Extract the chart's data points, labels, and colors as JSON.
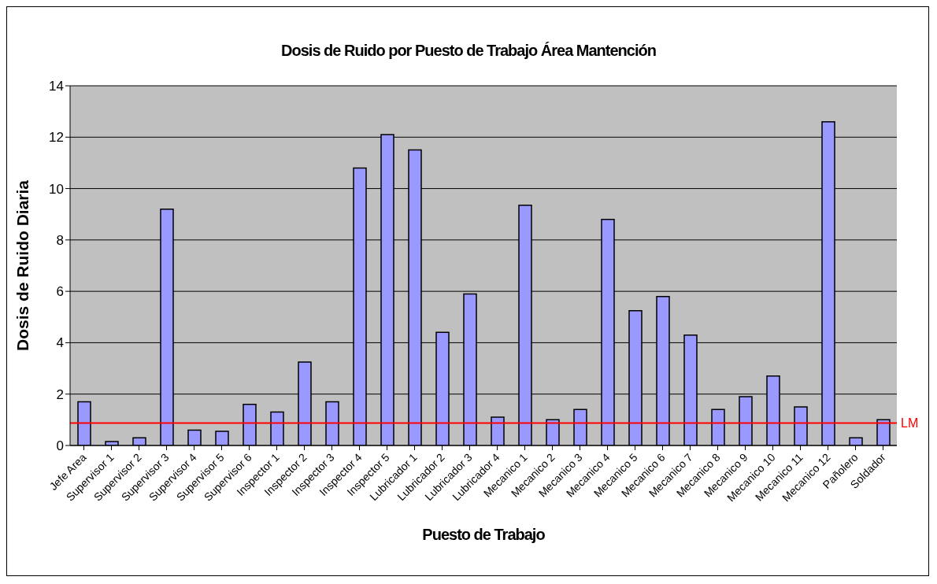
{
  "chart_data": {
    "type": "bar",
    "title": "Dosis de Ruido por Puesto de Trabajo Área Mantención",
    "xlabel": "Puesto de Trabajo",
    "ylabel": "Dosis de Ruido Diaria",
    "categories": [
      "Jefe Area",
      "Supervisor 1",
      "Supervisor 2",
      "Supervisor 3",
      "Supervisor 4",
      "Supervisor 5",
      "Supervisor 6",
      "Inspector 1",
      "Inspector 2",
      "Inspector 3",
      "Inspector 4",
      "Inspector 5",
      "Lubricador 1",
      "Lubricador 2",
      "Lubricador 3",
      "Lubricador 4",
      "Mecanico 1",
      "Mecanico 2",
      "Mecanico 3",
      "Mecanico 4",
      "Mecanico 5",
      "Mecanico 6",
      "Mecanico 7",
      "Mecanico 8",
      "Mecanico 9",
      "Mecanico 10",
      "Mecanico 11",
      "Mecanico 12",
      "Pañolero",
      "Soldador"
    ],
    "values": [
      1.7,
      0.15,
      0.3,
      9.2,
      0.6,
      0.55,
      1.6,
      1.3,
      3.25,
      1.7,
      10.8,
      12.1,
      11.5,
      4.4,
      5.9,
      1.1,
      9.35,
      1.0,
      1.4,
      8.8,
      5.25,
      5.8,
      4.3,
      1.4,
      1.9,
      2.7,
      1.5,
      12.6,
      0.3,
      1.0
    ],
    "color": "#9999ff",
    "ylim": [
      0,
      14
    ],
    "yticks": [
      0,
      2,
      4,
      6,
      8,
      10,
      12,
      14
    ],
    "grid": "y",
    "ref_lines": [
      {
        "axis": "y",
        "value": 0.87,
        "label": "LM",
        "color": "#ff0000"
      }
    ]
  }
}
